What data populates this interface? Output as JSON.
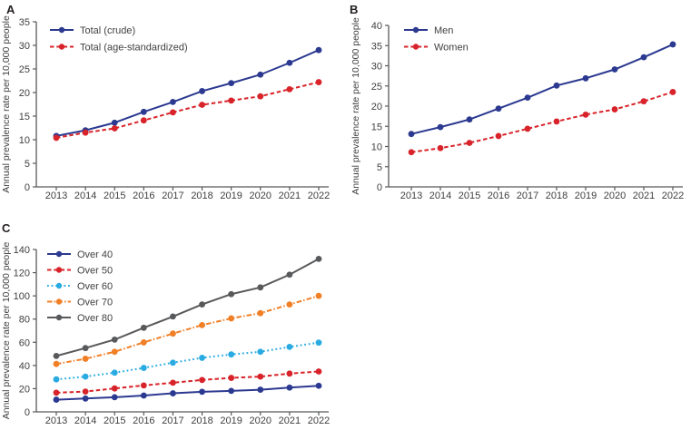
{
  "figure": {
    "background": "#ffffff",
    "axis_color": "#58595b",
    "text_color": "#414042"
  },
  "chart_data": [
    {
      "type": "line",
      "panel_label": "A",
      "title": "",
      "xlabel": "",
      "ylabel": "Annual prevalence rate per 10,000 people",
      "x": [
        "2013",
        "2014",
        "2015",
        "2016",
        "2017",
        "2018",
        "2019",
        "2020",
        "2021",
        "2022"
      ],
      "ylim": [
        0,
        35
      ],
      "ytick_step": 5,
      "grid": false,
      "legend_position": "top-left",
      "series": [
        {
          "name": "Total (crude)",
          "color": "#2b3990",
          "line_style": "solid",
          "values": [
            10.8,
            12.0,
            13.6,
            15.9,
            18.0,
            20.3,
            22.0,
            23.8,
            26.3,
            29.0
          ]
        },
        {
          "name": "Total (age-standardized)",
          "color": "#d8232a",
          "line_style": "dashed",
          "values": [
            10.4,
            11.5,
            12.4,
            14.1,
            15.8,
            17.4,
            18.3,
            19.2,
            20.7,
            22.2
          ]
        }
      ]
    },
    {
      "type": "line",
      "panel_label": "B",
      "title": "",
      "xlabel": "",
      "ylabel": "Annual prevalence rate per 10,000 people",
      "x": [
        "2013",
        "2014",
        "2015",
        "2016",
        "2017",
        "2018",
        "2019",
        "2020",
        "2021",
        "2022"
      ],
      "ylim": [
        0,
        40
      ],
      "ytick_step": 5,
      "grid": false,
      "legend_position": "top-left",
      "series": [
        {
          "name": "Men",
          "color": "#2b3990",
          "line_style": "solid",
          "values": [
            13.1,
            14.8,
            16.7,
            19.4,
            22.1,
            25.1,
            26.9,
            29.1,
            32.1,
            35.3
          ]
        },
        {
          "name": "Women",
          "color": "#d8232a",
          "line_style": "dashed",
          "values": [
            8.6,
            9.6,
            10.9,
            12.6,
            14.4,
            16.2,
            17.9,
            19.2,
            21.2,
            23.5
          ]
        }
      ]
    },
    {
      "type": "line",
      "panel_label": "C",
      "title": "",
      "xlabel": "",
      "ylabel": "Annual prevalence rate per 10,000 people",
      "x": [
        "2013",
        "2014",
        "2015",
        "2016",
        "2017",
        "2018",
        "2019",
        "2020",
        "2021",
        "2022"
      ],
      "ylim": [
        0,
        140
      ],
      "ytick_step": 20,
      "grid": false,
      "legend_position": "top-left",
      "series": [
        {
          "name": "Over 40",
          "color": "#2b3990",
          "line_style": "solid",
          "values": [
            10.5,
            11.5,
            12.6,
            14.1,
            16.0,
            17.3,
            18.1,
            19.1,
            20.9,
            22.5
          ]
        },
        {
          "name": "Over 50",
          "color": "#d8232a",
          "line_style": "dashed",
          "values": [
            16.5,
            17.5,
            20.2,
            22.8,
            25.1,
            27.5,
            29.3,
            30.4,
            33.0,
            34.8
          ]
        },
        {
          "name": "Over 60",
          "color": "#29abe2",
          "line_style": "dotted",
          "values": [
            28.0,
            30.4,
            33.8,
            37.9,
            42.4,
            46.6,
            49.5,
            51.8,
            56.0,
            59.7
          ]
        },
        {
          "name": "Over 70",
          "color": "#f07f26",
          "line_style": "dashdot",
          "values": [
            41.3,
            45.8,
            51.8,
            59.9,
            67.5,
            74.8,
            80.6,
            85.1,
            92.6,
            100.0
          ]
        },
        {
          "name": "Over 80",
          "color": "#58595b",
          "line_style": "solid",
          "values": [
            48.2,
            55.0,
            62.3,
            72.5,
            82.2,
            92.6,
            101.5,
            107.3,
            118.3,
            131.9
          ]
        }
      ]
    }
  ]
}
